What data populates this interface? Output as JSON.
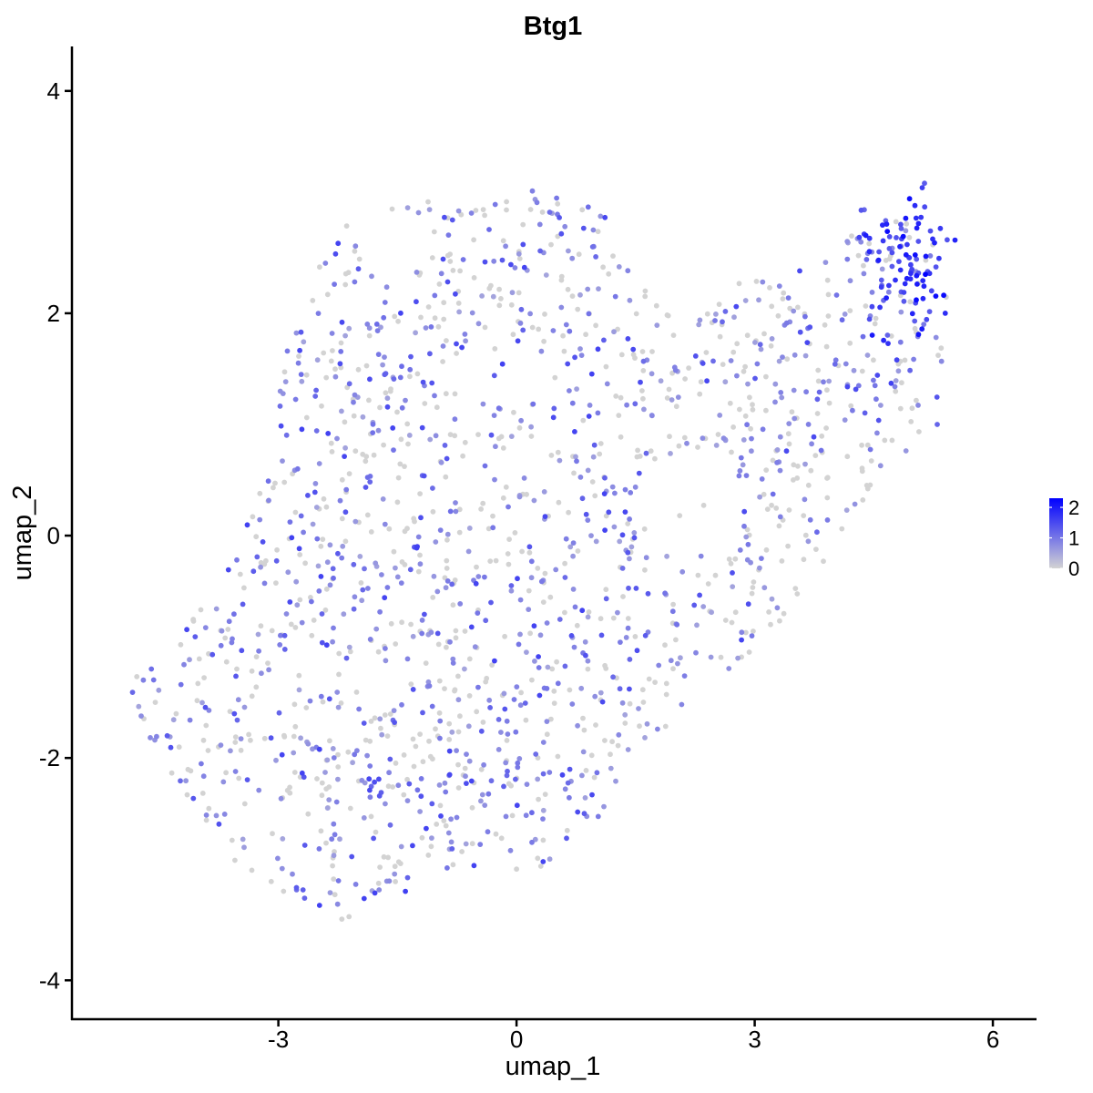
{
  "chart_data": {
    "type": "scatter",
    "title": "Btg1",
    "xlabel": "umap_1",
    "ylabel": "umap_2",
    "xlim": [
      -5.6,
      6.55
    ],
    "ylim": [
      -4.35,
      4.4
    ],
    "x_ticks": [
      -3,
      0,
      3,
      6
    ],
    "y_ticks": [
      -4,
      -2,
      0,
      2,
      4
    ],
    "x_tick_labels": [
      "-3",
      "0",
      "3",
      "6"
    ],
    "y_tick_labels": [
      "-4",
      "-2",
      "0",
      "2",
      "4"
    ],
    "grid": false,
    "legend": {
      "placement": "right",
      "type": "colorbar",
      "ticks": [
        0,
        1,
        2
      ],
      "tick_labels": [
        "0",
        "1",
        "2"
      ],
      "range": [
        0,
        2.3
      ]
    },
    "color_scale": {
      "low": "#d3d3d3",
      "high": "#0000ff"
    },
    "point_count_approx": 1800,
    "points_sample": [
      {
        "x": -4.7,
        "y": -1.3,
        "v": 0.9
      },
      {
        "x": -4.6,
        "y": -1.2,
        "v": 1.1
      },
      {
        "x": -4.55,
        "y": -1.5,
        "v": 0.0
      },
      {
        "x": -4.4,
        "y": -1.8,
        "v": 1.3
      },
      {
        "x": -2.2,
        "y": -3.45,
        "v": 0.0
      },
      {
        "x": -1.4,
        "y": -3.2,
        "v": 1.6
      },
      {
        "x": 0.2,
        "y": 3.1,
        "v": 0.9
      },
      {
        "x": 4.4,
        "y": 2.7,
        "v": 2.0
      },
      {
        "x": 5.15,
        "y": 2.35,
        "v": 2.3
      },
      {
        "x": 5.4,
        "y": 2.0,
        "v": 1.8
      },
      {
        "x": 5.3,
        "y": 1.0,
        "v": 1.2
      },
      {
        "x": 3.2,
        "y": -0.8,
        "v": 0.0
      },
      {
        "x": 0.0,
        "y": -3.0,
        "v": 0.0
      }
    ]
  }
}
